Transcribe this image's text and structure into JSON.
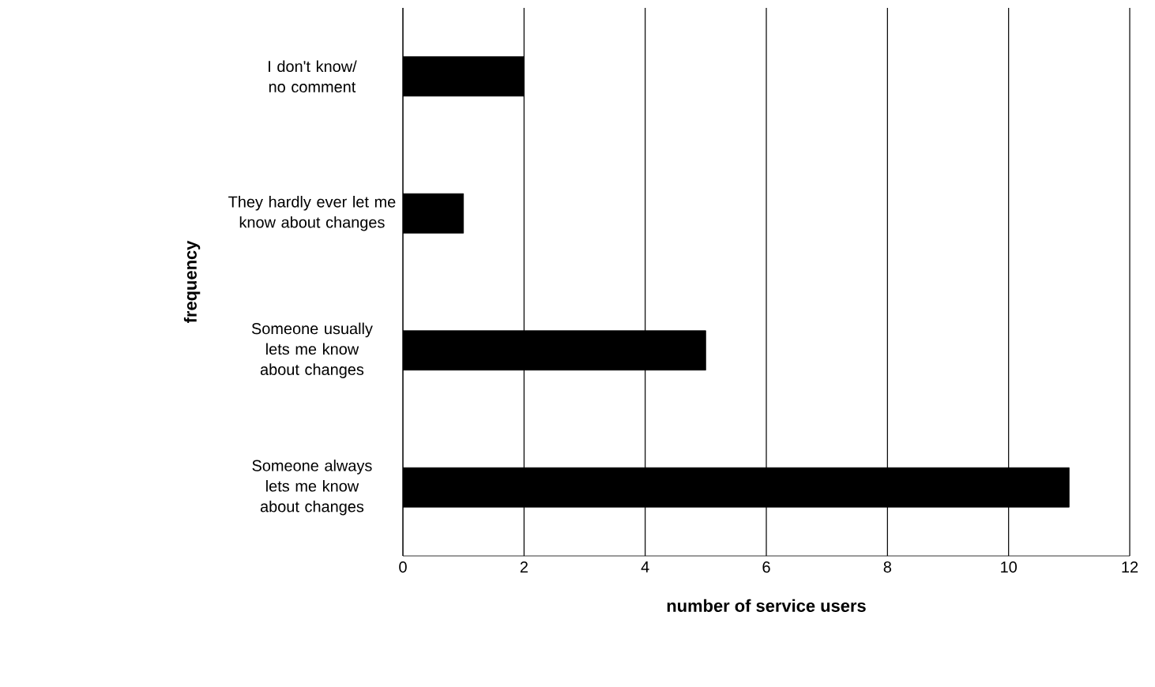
{
  "chart_data": {
    "type": "bar",
    "orientation": "horizontal",
    "xlabel": "number of service users",
    "ylabel": "frequency",
    "categories": [
      "I don't know/ no comment",
      "They hardly ever let me know about changes",
      "Someone usually lets me know about changes",
      "Someone always lets me know about changes"
    ],
    "values": [
      2,
      1,
      5,
      11
    ],
    "color": "#000000",
    "xlim": [
      0,
      12
    ],
    "xticks": [
      0,
      2,
      4,
      6,
      8,
      10,
      12
    ],
    "grid": "x"
  }
}
